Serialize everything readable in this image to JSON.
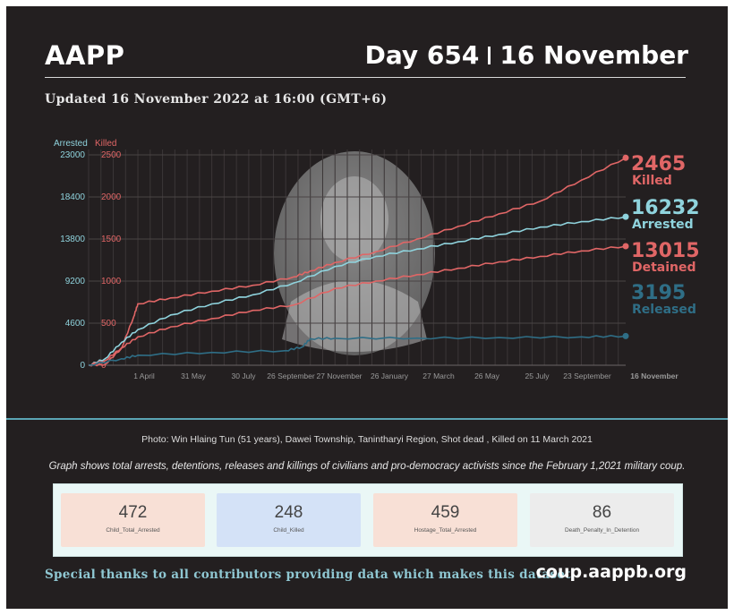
{
  "header": {
    "brand": "AAPP",
    "day": "Day 654",
    "date": "16 November",
    "updated": "Updated 16 November 2022 at 16:00 (GMT+6)"
  },
  "colors": {
    "background": "#231f20",
    "killed": "#e06666",
    "arrested": "#8fd3dd",
    "detained": "#e06666",
    "released": "#2f6e86",
    "divider": "#5aa4b4"
  },
  "chart_data": {
    "type": "line",
    "grid": true,
    "x_tick_labels": [
      "1 April",
      "31 May",
      "30 July",
      "26 September",
      "27 November",
      "26 January",
      "27 March",
      "26 May",
      "25 July",
      "23 September",
      "16 November"
    ],
    "left_axis": {
      "title": "Arrested",
      "ticks": [
        0,
        4600,
        9200,
        13800,
        18400,
        23000
      ],
      "ylim": [
        0,
        23000
      ]
    },
    "right_axis": {
      "title": "Killed",
      "ticks": [
        0,
        500,
        1000,
        1500,
        2000,
        2500
      ],
      "ylim": [
        0,
        2500
      ]
    },
    "x_day_range": [
      0,
      654
    ],
    "series": [
      {
        "name": "Killed",
        "axis": "right",
        "color": "#e06666",
        "final_value": 2465,
        "points": [
          [
            0,
            0
          ],
          [
            20,
            10
          ],
          [
            40,
            200
          ],
          [
            55,
            580
          ],
          [
            60,
            730
          ],
          [
            100,
            800
          ],
          [
            150,
            880
          ],
          [
            200,
            950
          ],
          [
            250,
            1050
          ],
          [
            270,
            1120
          ],
          [
            300,
            1220
          ],
          [
            350,
            1350
          ],
          [
            400,
            1500
          ],
          [
            450,
            1650
          ],
          [
            500,
            1800
          ],
          [
            550,
            1950
          ],
          [
            600,
            2200
          ],
          [
            654,
            2465
          ]
        ]
      },
      {
        "name": "Arrested",
        "axis": "left",
        "color": "#8fd3dd",
        "final_value": 16232,
        "points": [
          [
            0,
            0
          ],
          [
            20,
            700
          ],
          [
            40,
            2500
          ],
          [
            60,
            3900
          ],
          [
            100,
            5500
          ],
          [
            150,
            6700
          ],
          [
            200,
            7700
          ],
          [
            250,
            9000
          ],
          [
            300,
            10800
          ],
          [
            350,
            11900
          ],
          [
            400,
            12700
          ],
          [
            450,
            13500
          ],
          [
            500,
            14300
          ],
          [
            550,
            15100
          ],
          [
            600,
            15700
          ],
          [
            654,
            16232
          ]
        ]
      },
      {
        "name": "Detained",
        "axis": "left",
        "color": "#e06666",
        "final_value": 13015,
        "points": [
          [
            0,
            0
          ],
          [
            20,
            500
          ],
          [
            40,
            1900
          ],
          [
            60,
            3100
          ],
          [
            100,
            4200
          ],
          [
            150,
            5100
          ],
          [
            200,
            6000
          ],
          [
            250,
            6600
          ],
          [
            300,
            8400
          ],
          [
            350,
            9200
          ],
          [
            400,
            9900
          ],
          [
            450,
            10600
          ],
          [
            500,
            11300
          ],
          [
            550,
            11900
          ],
          [
            600,
            12500
          ],
          [
            654,
            13015
          ]
        ]
      },
      {
        "name": "Released",
        "axis": "left",
        "color": "#2f6e86",
        "final_value": 3195,
        "points": [
          [
            0,
            0
          ],
          [
            40,
            700
          ],
          [
            60,
            1100
          ],
          [
            150,
            1400
          ],
          [
            240,
            1600
          ],
          [
            260,
            2000
          ],
          [
            270,
            2900
          ],
          [
            300,
            2950
          ],
          [
            400,
            2970
          ],
          [
            500,
            3020
          ],
          [
            600,
            3100
          ],
          [
            654,
            3195
          ]
        ]
      }
    ]
  },
  "caption": "Photo: Win Hlaing Tun (51 years), Dawei Township, Tanintharyi Region, Shot dead , Killed on 11 March 2021",
  "description": "Graph shows total arrests, detentions, releases and killings of civilians and pro-democracy activists since the February 1,2021 military coup.",
  "stats": [
    {
      "value": "472",
      "label": "Child_Total_Arrested",
      "color": "#f8e0d6"
    },
    {
      "value": "248",
      "label": "Child_Killed",
      "color": "#d4e2f7"
    },
    {
      "value": "459",
      "label": "Hostage_Total_Arrested",
      "color": "#f8e0d6"
    },
    {
      "value": "86",
      "label": "Death_Penalty_In_Detention",
      "color": "#ececec"
    }
  ],
  "footer": {
    "thanks": "Special thanks to all contributors providing data which makes this dataset.",
    "site": "coup.aappb.org"
  }
}
